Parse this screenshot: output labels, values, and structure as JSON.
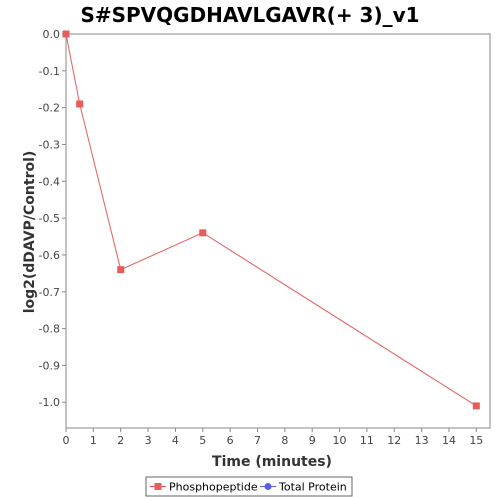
{
  "chart_data": {
    "type": "line",
    "title": "S#SPVQGDHAVLGAVR(+ 3)_v1",
    "xlabel": "Time (minutes)",
    "ylabel": "log2(dDAVP/Control)",
    "xlim": [
      0,
      15.5
    ],
    "ylim": [
      -1.07,
      0.0
    ],
    "x_ticks": [
      0,
      1,
      2,
      3,
      4,
      5,
      6,
      7,
      8,
      9,
      10,
      11,
      12,
      13,
      14,
      15
    ],
    "x_tick_labels": [
      "0",
      "1",
      "2",
      "3",
      "4",
      "5",
      "6",
      "7",
      "8",
      "9",
      "10",
      "11",
      "12",
      "13",
      "14",
      "15"
    ],
    "y_ticks": [
      0.0,
      -0.1,
      -0.2,
      -0.3,
      -0.4,
      -0.5,
      -0.6,
      -0.7,
      -0.8,
      -0.9,
      -1.0
    ],
    "y_tick_labels": [
      "0.0",
      "-0.1",
      "-0.2",
      "-0.3",
      "-0.4",
      "-0.5",
      "-0.6",
      "-0.7",
      "-0.8",
      "-0.9",
      "-1.0"
    ],
    "grid": false,
    "legend_position": "bottom",
    "series": [
      {
        "name": "Phosphopeptide",
        "color": "#e85c5c",
        "marker": "square",
        "x": [
          0,
          0.5,
          2,
          5,
          15
        ],
        "y": [
          0.0,
          -0.19,
          -0.64,
          -0.54,
          -1.01
        ]
      },
      {
        "name": "Total Protein",
        "color": "#5c5cf0",
        "marker": "circle",
        "x": [],
        "y": []
      }
    ]
  }
}
